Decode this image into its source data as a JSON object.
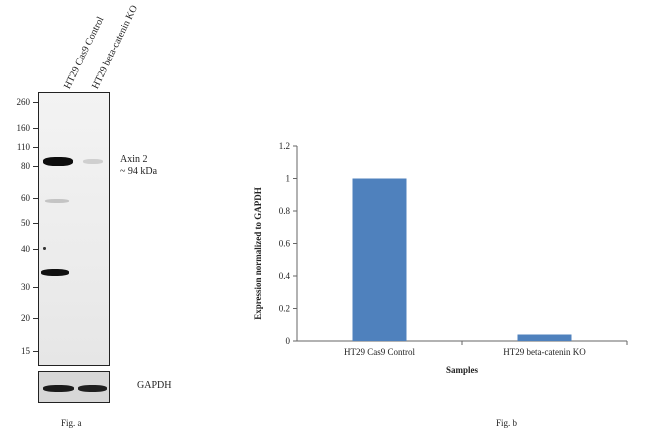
{
  "figure_a": {
    "lanes": [
      "HT29 Cas9 Control",
      "HT29 beta-catenin KO"
    ],
    "mw_markers": [
      "260",
      "160",
      "110",
      "80",
      "60",
      "50",
      "40",
      "30",
      "20",
      "15"
    ],
    "band_label_line1": "Axin 2",
    "band_label_line2": "~ 94 kDa",
    "loading_control": "GAPDH",
    "caption": "Fig. a"
  },
  "figure_b": {
    "caption": "Fig. b"
  },
  "chart_data": {
    "type": "bar",
    "categories": [
      "HT29 Cas9 Control",
      "HT29 beta-catenin KO"
    ],
    "values": [
      1.0,
      0.04
    ],
    "xlabel": "Samples",
    "ylabel": "Expression normalized to GAPDH",
    "ylim": [
      0,
      1.2
    ],
    "yticks": [
      "0",
      "0.2",
      "0.4",
      "0.6",
      "0.8",
      "1",
      "1.2"
    ],
    "bar_color": "#4f81bd",
    "grid": false,
    "legend": "none"
  }
}
